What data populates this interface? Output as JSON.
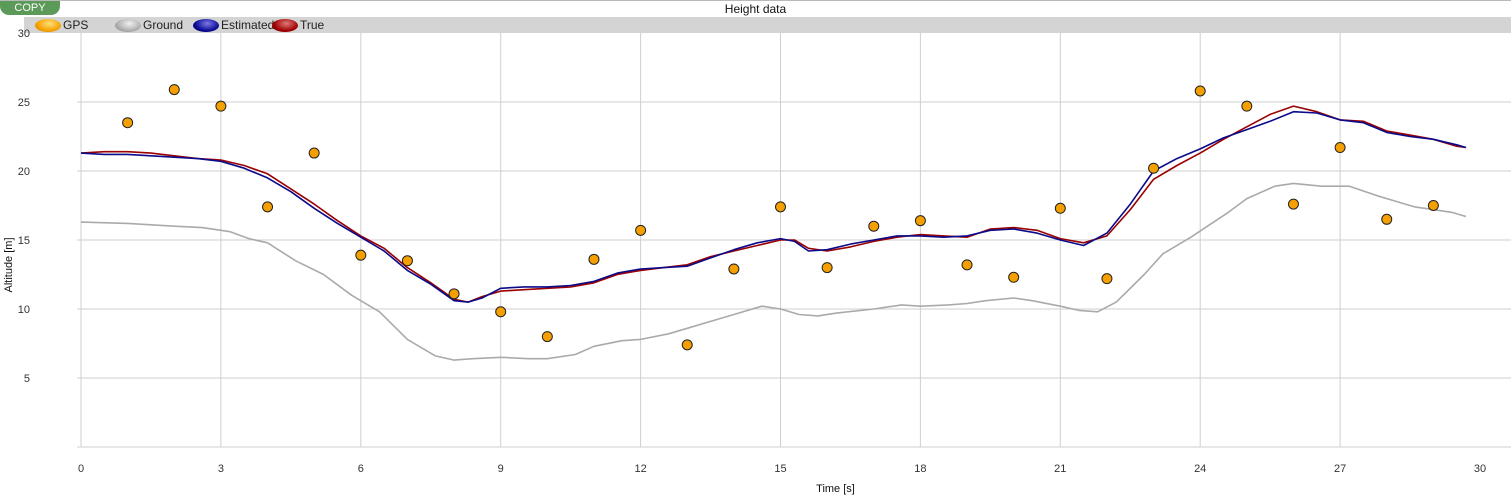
{
  "toolbar": {
    "copy_label": "COPY"
  },
  "chart_data": {
    "type": "line",
    "title": "Height data",
    "xlabel": "Time [s]",
    "ylabel": "Altitude [m]",
    "xlim": [
      0,
      30
    ],
    "ylim": [
      0,
      30
    ],
    "xticks": [
      0,
      3,
      6,
      9,
      12,
      15,
      18,
      21,
      24,
      27,
      30
    ],
    "yticks": [
      5,
      10,
      15,
      20,
      25,
      30
    ],
    "grid": true,
    "legend_position": "top",
    "legend": [
      {
        "name": "GPS",
        "icon": "orange-ellipse"
      },
      {
        "name": "Ground",
        "icon": "gray-ellipse"
      },
      {
        "name": "Estimated",
        "icon": "navy-ellipse"
      },
      {
        "name": "True",
        "icon": "darkred-ellipse"
      }
    ],
    "series": [
      {
        "name": "GPS",
        "kind": "scatter",
        "color": "#f5a000",
        "x": [
          1,
          2,
          3,
          4,
          5,
          6,
          7,
          8,
          9,
          10,
          11,
          12,
          13,
          14,
          15,
          16,
          17,
          18,
          19,
          20,
          21,
          22,
          23,
          24,
          25,
          26,
          27,
          28,
          29
        ],
        "y": [
          23.5,
          25.9,
          24.7,
          17.4,
          21.3,
          13.9,
          13.5,
          11.1,
          9.8,
          8.0,
          13.6,
          15.7,
          7.4,
          12.9,
          17.4,
          13.0,
          16.0,
          16.4,
          13.2,
          12.3,
          17.3,
          12.2,
          20.2,
          25.8,
          24.7,
          17.6,
          21.7,
          16.5,
          17.5
        ]
      },
      {
        "name": "Ground",
        "kind": "line",
        "color": "#aaaaaa",
        "x": [
          0,
          1,
          2,
          2.6,
          3.2,
          3.6,
          4,
          4.6,
          5.2,
          5.8,
          6.4,
          7,
          7.6,
          8,
          8.4,
          9,
          9.6,
          10,
          10.6,
          11,
          11.6,
          12,
          12.6,
          13,
          13.6,
          14,
          14.6,
          15,
          15.4,
          15.8,
          16.2,
          17,
          17.6,
          18,
          18.6,
          19,
          19.4,
          20,
          20.4,
          21,
          21.4,
          21.8,
          22.2,
          22.8,
          23.2,
          23.8,
          24.2,
          24.6,
          25,
          25.6,
          26,
          26.6,
          27.2,
          27.8,
          28.2,
          28.6,
          29,
          29.4,
          29.7
        ],
        "y": [
          16.3,
          16.2,
          16.0,
          15.9,
          15.6,
          15.1,
          14.8,
          13.5,
          12.5,
          11.0,
          9.8,
          7.8,
          6.6,
          6.3,
          6.4,
          6.5,
          6.4,
          6.4,
          6.7,
          7.3,
          7.7,
          7.8,
          8.2,
          8.6,
          9.2,
          9.6,
          10.2,
          10.0,
          9.6,
          9.5,
          9.7,
          10.0,
          10.3,
          10.2,
          10.3,
          10.4,
          10.6,
          10.8,
          10.6,
          10.2,
          9.9,
          9.8,
          10.5,
          12.5,
          14.0,
          15.2,
          16.1,
          17.0,
          18.0,
          18.9,
          19.1,
          18.9,
          18.9,
          18.2,
          17.8,
          17.4,
          17.2,
          17.0,
          16.7
        ]
      },
      {
        "name": "Estimated",
        "kind": "line",
        "color": "#0a0a8a",
        "x": [
          0,
          0.5,
          1,
          1.5,
          2,
          2.5,
          3,
          3.5,
          4,
          4.5,
          5,
          5.5,
          6,
          6.5,
          7,
          7.5,
          8,
          8.3,
          8.6,
          9,
          9.5,
          10,
          10.5,
          11,
          11.5,
          12,
          12.5,
          13,
          13.5,
          14,
          14.5,
          15,
          15.3,
          15.6,
          16,
          16.5,
          17,
          17.5,
          18,
          18.5,
          19,
          19.5,
          20,
          20.5,
          21,
          21.5,
          22,
          22.5,
          23,
          23.5,
          24,
          24.5,
          25,
          25.5,
          26,
          26.5,
          27,
          27.5,
          28,
          28.5,
          29,
          29.5,
          29.7
        ],
        "y": [
          21.3,
          21.2,
          21.2,
          21.1,
          21.0,
          20.9,
          20.7,
          20.2,
          19.5,
          18.5,
          17.3,
          16.2,
          15.2,
          14.2,
          12.8,
          11.8,
          10.6,
          10.5,
          10.8,
          11.5,
          11.6,
          11.6,
          11.7,
          12.0,
          12.6,
          12.9,
          13.0,
          13.1,
          13.7,
          14.3,
          14.8,
          15.1,
          14.9,
          14.2,
          14.3,
          14.7,
          15.0,
          15.3,
          15.3,
          15.2,
          15.3,
          15.7,
          15.8,
          15.5,
          15.0,
          14.6,
          15.5,
          17.6,
          20.0,
          20.9,
          21.6,
          22.4,
          23.0,
          23.6,
          24.3,
          24.2,
          23.7,
          23.5,
          22.8,
          22.5,
          22.3,
          21.9,
          21.7
        ]
      },
      {
        "name": "True",
        "kind": "line",
        "color": "#9b0000",
        "x": [
          0,
          0.5,
          1,
          1.5,
          2,
          2.5,
          3,
          3.5,
          4,
          4.5,
          5,
          5.5,
          6,
          6.5,
          7,
          7.5,
          8,
          8.3,
          8.6,
          9,
          9.5,
          10,
          10.5,
          11,
          11.5,
          12,
          12.5,
          13,
          13.5,
          14,
          14.5,
          15,
          15.3,
          15.6,
          16,
          16.5,
          17,
          17.5,
          18,
          18.5,
          19,
          19.5,
          20,
          20.5,
          21,
          21.5,
          22,
          22.5,
          23,
          23.5,
          24,
          24.5,
          25,
          25.5,
          26,
          26.5,
          27,
          27.5,
          28,
          28.5,
          29,
          29.5,
          29.7
        ],
        "y": [
          21.3,
          21.4,
          21.4,
          21.3,
          21.1,
          20.9,
          20.8,
          20.4,
          19.8,
          18.7,
          17.6,
          16.4,
          15.3,
          14.4,
          13.0,
          11.9,
          10.7,
          10.5,
          10.9,
          11.3,
          11.4,
          11.5,
          11.6,
          11.9,
          12.5,
          12.8,
          13.0,
          13.2,
          13.8,
          14.2,
          14.6,
          15.0,
          15.0,
          14.4,
          14.2,
          14.5,
          14.9,
          15.2,
          15.4,
          15.3,
          15.2,
          15.8,
          15.9,
          15.7,
          15.1,
          14.8,
          15.3,
          17.2,
          19.4,
          20.4,
          21.3,
          22.3,
          23.2,
          24.1,
          24.7,
          24.3,
          23.7,
          23.6,
          22.9,
          22.6,
          22.3,
          21.8,
          21.7
        ]
      }
    ]
  }
}
